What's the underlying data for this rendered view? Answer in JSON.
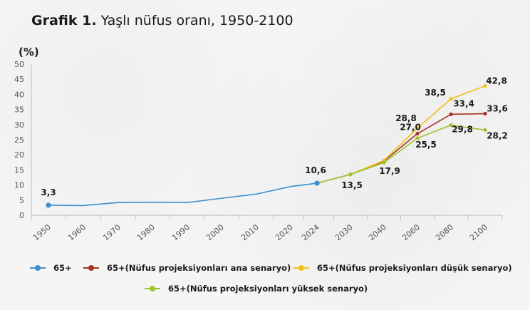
{
  "title": {
    "number": "Grafik 1.",
    "text": "Yaşlı nüfus oranı, 1950-2100"
  },
  "chart_data": {
    "type": "line",
    "ylabel": "(%)",
    "ylim": [
      0,
      50
    ],
    "yticks": [
      0,
      5,
      10,
      15,
      20,
      25,
      30,
      35,
      40,
      45,
      50
    ],
    "categories": [
      "1950",
      "1960",
      "1970",
      "1980",
      "1990",
      "2000",
      "2010",
      "2020",
      "2024",
      "2030",
      "2040",
      "2060",
      "2080",
      "2100"
    ],
    "grid": false,
    "legend_position": "bottom",
    "series": [
      {
        "name": "65+",
        "color": "#3a8fd0",
        "values": [
          3.3,
          3.2,
          4.2,
          4.3,
          4.2,
          5.6,
          7.0,
          9.5,
          10.6,
          null,
          null,
          null,
          null,
          null
        ],
        "labels": {
          "0": "3,3",
          "8": "10,6"
        },
        "markers": [
          0,
          8
        ]
      },
      {
        "name": "65+(Nüfus projeksiyonları ana senaryo)",
        "color": "#a33222",
        "values": [
          null,
          null,
          null,
          null,
          null,
          null,
          null,
          null,
          10.6,
          13.5,
          17.9,
          27.0,
          33.4,
          33.6
        ],
        "labels": {
          "9": "13,5",
          "10": "17,9",
          "11": "27,0",
          "12": "33,4",
          "13": "33,6"
        },
        "markers": [
          9,
          10,
          11,
          12,
          13
        ]
      },
      {
        "name": "65+(Nüfus projeksiyonları düşük senaryo)",
        "color": "#f2c01c",
        "values": [
          null,
          null,
          null,
          null,
          null,
          null,
          null,
          null,
          10.6,
          13.5,
          18.1,
          28.8,
          38.5,
          42.8
        ],
        "labels": {
          "11": "28,8",
          "12": "38,5",
          "13": "42,8"
        },
        "markers": [
          9,
          10,
          11,
          12,
          13
        ]
      },
      {
        "name": "65+(Nüfus projeksiyonları yüksek senaryo)",
        "color": "#9ec42f",
        "values": [
          null,
          null,
          null,
          null,
          null,
          null,
          null,
          null,
          10.6,
          13.5,
          17.4,
          25.5,
          29.8,
          28.2
        ],
        "labels": {
          "11": "25,5",
          "12": "29,8",
          "13": "28,2"
        },
        "markers": [
          9,
          10,
          11,
          12,
          13
        ]
      }
    ]
  }
}
